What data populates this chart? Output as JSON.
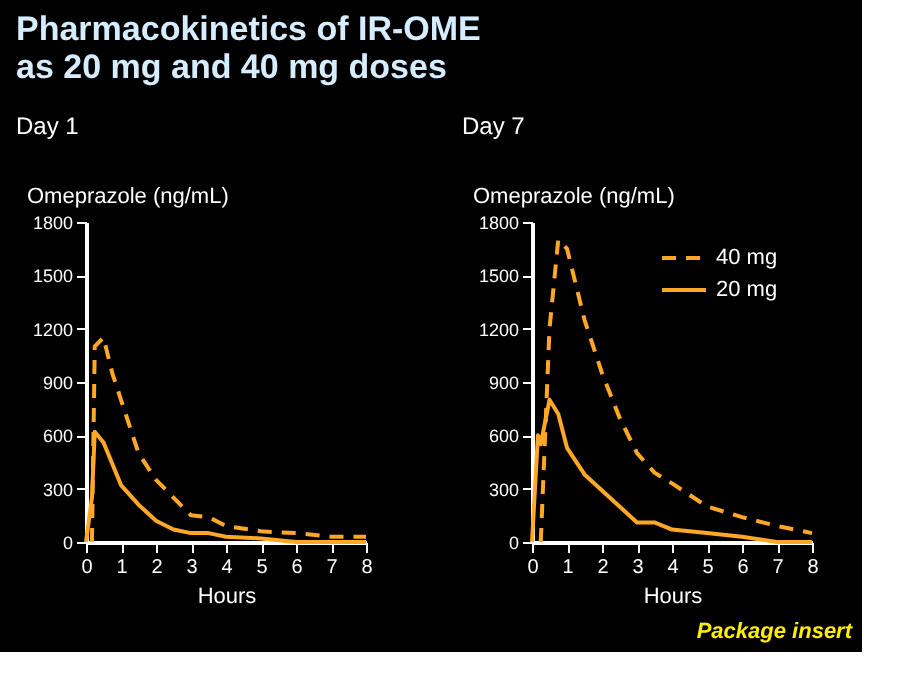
{
  "chart_data": [
    {
      "type": "line",
      "title": "Pharmacokinetics of IR-OME\nas 20 mg and 40 mg doses",
      "subtitle": "Day 1",
      "xlabel": "Hours",
      "ylabel": "Omeprazole (ng/mL)",
      "xlim": [
        0,
        8
      ],
      "xticks": [
        0,
        1,
        2,
        3,
        4,
        5,
        6,
        7,
        8
      ],
      "ylim": [
        0,
        1800
      ],
      "yticks": [
        0,
        300,
        600,
        900,
        1200,
        1500,
        1800
      ],
      "grid": false,
      "series": [
        {
          "color": "#ffa827",
          "line_style": "dashed",
          "x": [
            0.17,
            0.25,
            0.5,
            0.75,
            1,
            1.5,
            2,
            2.5,
            3,
            3.5,
            4,
            5,
            6,
            7,
            8
          ],
          "values": [
            0,
            1100,
            1150,
            950,
            800,
            500,
            350,
            250,
            150,
            140,
            90,
            60,
            50,
            30,
            30
          ]
        },
        {
          "color": "#ffa827",
          "line_style": "solid",
          "x": [
            0,
            0.17,
            0.25,
            0.5,
            1,
            1.5,
            2,
            2.5,
            3,
            3.5,
            4,
            5,
            6,
            7,
            8
          ],
          "values": [
            0,
            250,
            620,
            560,
            320,
            210,
            120,
            70,
            50,
            50,
            30,
            20,
            0,
            0,
            0
          ]
        }
      ]
    },
    {
      "type": "line",
      "subtitle": "Day 7",
      "xlabel": "Hours",
      "ylabel": "Omeprazole (ng/mL)",
      "xlim": [
        0,
        8
      ],
      "xticks": [
        0,
        1,
        2,
        3,
        4,
        5,
        6,
        7,
        8
      ],
      "ylim": [
        0,
        1800
      ],
      "yticks": [
        0,
        300,
        600,
        900,
        1200,
        1500,
        1800
      ],
      "grid": false,
      "legend": "top right",
      "annotations": [
        "Package insert"
      ],
      "series": [
        {
          "name": "40 mg",
          "color": "#ffa827",
          "line_style": "dashed",
          "x": [
            0.25,
            0.5,
            0.75,
            1,
            1.5,
            2,
            2.5,
            3,
            3.5,
            4,
            5,
            6,
            7,
            8
          ],
          "values": [
            0,
            1200,
            1700,
            1650,
            1250,
            950,
            700,
            500,
            390,
            330,
            200,
            140,
            90,
            50
          ]
        },
        {
          "name": "20 mg",
          "color": "#ffa827",
          "line_style": "solid",
          "x": [
            0,
            0.17,
            0.25,
            0.5,
            0.75,
            1,
            1.5,
            2,
            2.5,
            3,
            3.5,
            4,
            5,
            6,
            7,
            8
          ],
          "values": [
            0,
            600,
            550,
            800,
            720,
            530,
            380,
            290,
            200,
            110,
            110,
            70,
            50,
            30,
            0,
            0
          ]
        }
      ]
    }
  ]
}
